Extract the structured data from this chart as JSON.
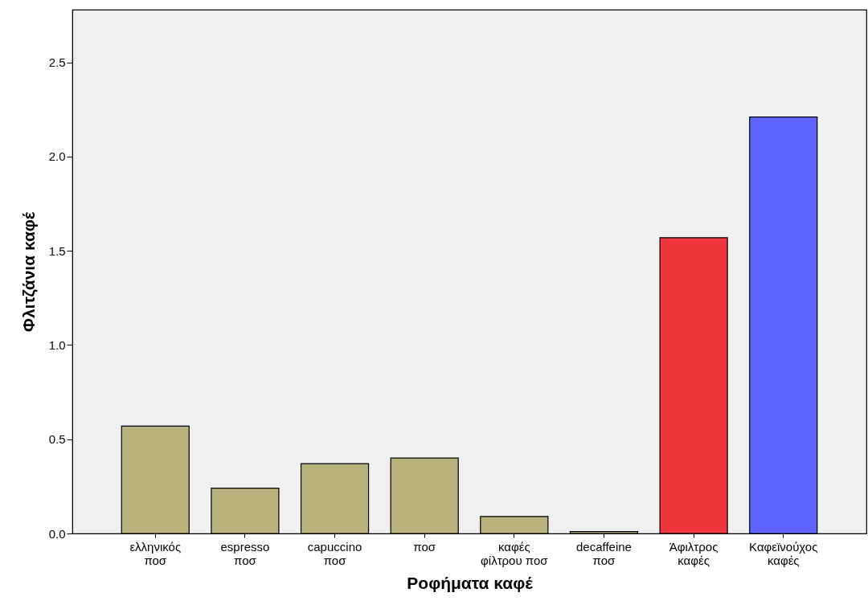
{
  "chart_data": {
    "type": "bar",
    "xlabel": "Ροφήματα καφέ",
    "ylabel": "Φλιτζάνια καφέ",
    "categories": [
      "ελληνικός\nποσ",
      "espresso\nποσ",
      "capuccino\nποσ",
      "ποσ",
      "καφές\nφίλτρου ποσ",
      "decaffeine\nποσ",
      "Άφιλτρος\nκαφές",
      "Καφεϊνούχος\nκαφές"
    ],
    "values": [
      0.57,
      0.24,
      0.37,
      0.4,
      0.09,
      0.01,
      1.57,
      2.21
    ],
    "colors": [
      "#b8b27c",
      "#b8b27c",
      "#b8b27c",
      "#b8b27c",
      "#b8b27c",
      "#b8b27c",
      "#f0343c",
      "#5f63fe"
    ],
    "ylim": [
      0,
      2.78
    ],
    "yticks": [
      {
        "value": 0,
        "label": "0.0"
      },
      {
        "value": 0.5,
        "label": "0.5"
      },
      {
        "value": 1,
        "label": "1.0"
      },
      {
        "value": 1.5,
        "label": "1.5"
      },
      {
        "value": 2,
        "label": "2.0"
      },
      {
        "value": 2.5,
        "label": "2.5"
      }
    ],
    "grid": false
  }
}
